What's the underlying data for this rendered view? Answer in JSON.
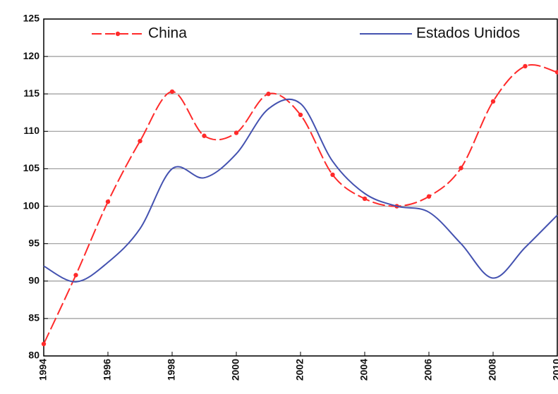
{
  "chart_data": {
    "type": "line",
    "x": [
      1994,
      1995,
      1996,
      1997,
      1998,
      1999,
      2000,
      2001,
      2002,
      2003,
      2004,
      2005,
      2006,
      2007,
      2008,
      2009,
      2010
    ],
    "series": [
      {
        "name": "China",
        "color": "#ff2a2a",
        "values": [
          81.6,
          90.8,
          100.6,
          108.7,
          115.3,
          109.4,
          109.8,
          115,
          112.2,
          104.2,
          101,
          100,
          101.3,
          105.1,
          114,
          118.7,
          117.9
        ]
      },
      {
        "name": "Estados Unidos",
        "color": "#4452b0",
        "values": [
          92,
          89.9,
          92.5,
          97,
          105,
          103.8,
          107,
          113,
          113.7,
          106,
          101.7,
          100,
          99.2,
          95,
          90.4,
          94.5,
          98.8
        ]
      }
    ],
    "xlim": [
      1994,
      2010
    ],
    "xticks": [
      1994,
      1996,
      1998,
      2000,
      2002,
      2004,
      2006,
      2008,
      2010
    ],
    "ylim": [
      80,
      125
    ],
    "yticks": [
      80,
      85,
      90,
      95,
      100,
      105,
      110,
      115,
      120,
      125
    ],
    "grid": true,
    "legend": "top"
  }
}
